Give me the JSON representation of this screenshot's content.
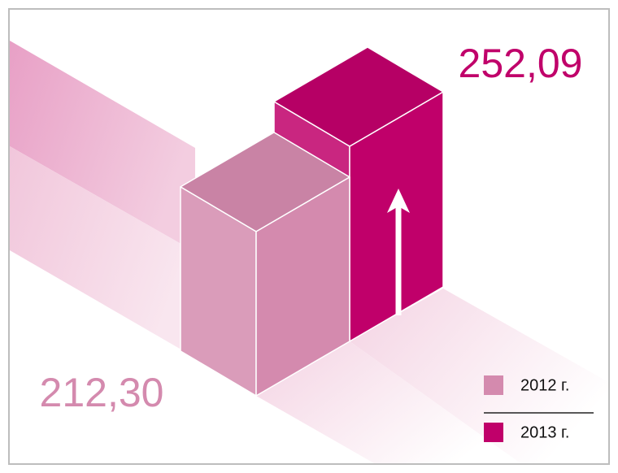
{
  "chart_data": {
    "type": "bar",
    "categories": [
      "2012 г.",
      "2013 г."
    ],
    "values": [
      212.3,
      252.09
    ],
    "value_labels": [
      "212,30",
      "252,09"
    ],
    "colors": [
      "#d48aae",
      "#c0006a"
    ]
  }
}
